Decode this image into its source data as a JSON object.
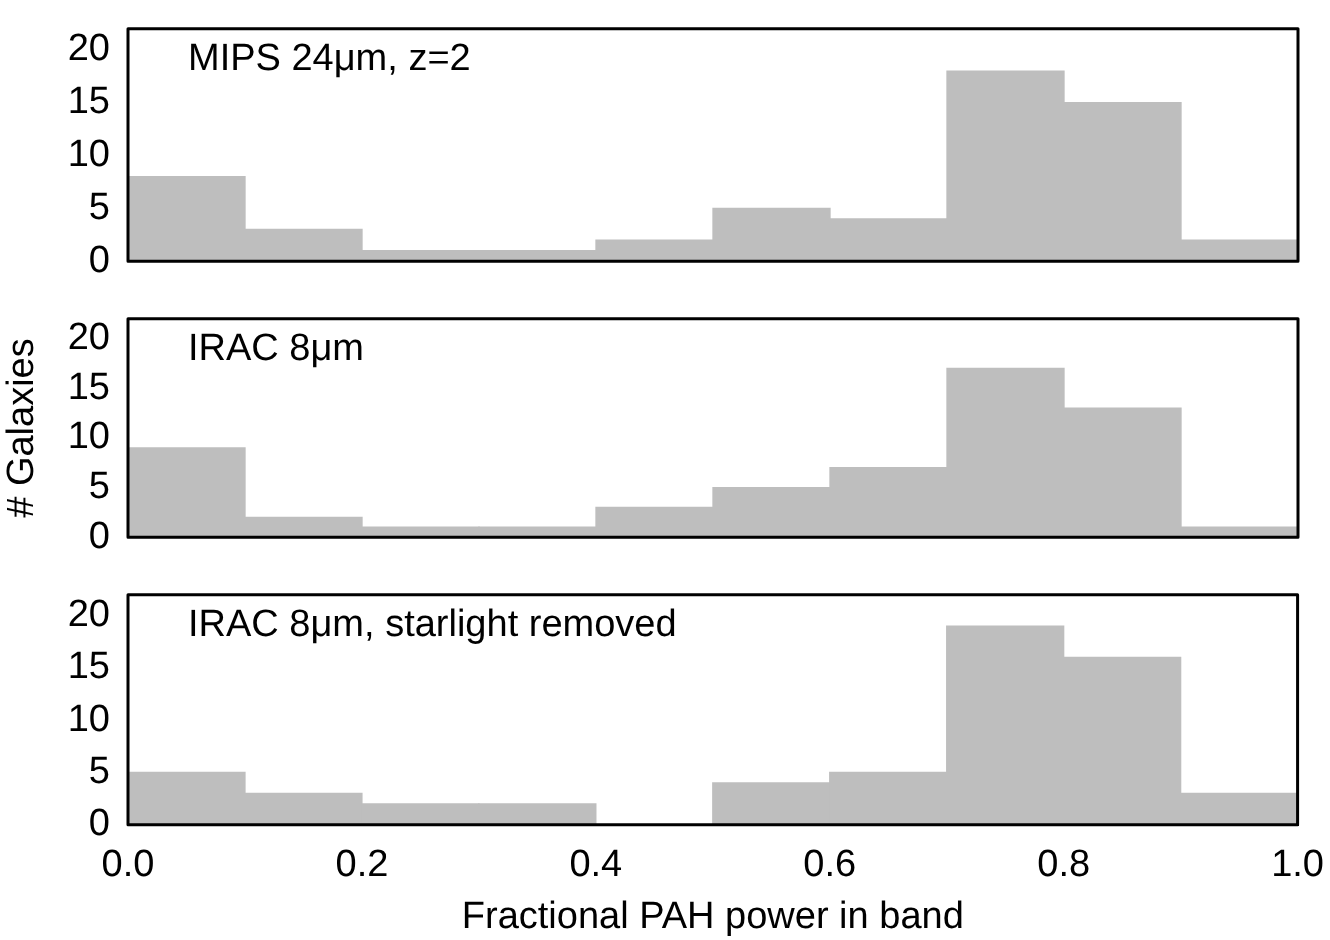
{
  "chart_data": [
    {
      "type": "histogram",
      "title": "MIPS 24μm, z=2",
      "bins": [
        0,
        0.1,
        0.2,
        0.3,
        0.4,
        0.5,
        0.6,
        0.7,
        0.8,
        0.9,
        1.0
      ],
      "values": [
        8,
        3,
        1,
        1,
        2,
        5,
        4,
        18,
        15,
        2
      ],
      "color": "#bebebe",
      "xlim": [
        0,
        1
      ],
      "xticks": [
        0,
        0.2,
        0.4,
        0.6,
        0.8,
        1
      ],
      "ylim": [
        0,
        22
      ],
      "yticks": [
        0,
        5,
        10,
        15,
        20
      ],
      "tick_labels": "y",
      "grid": false
    },
    {
      "type": "histogram",
      "title": "IRAC 8μm",
      "ylabel": "# Galaxies",
      "bins": [
        0,
        0.1,
        0.2,
        0.3,
        0.4,
        0.5,
        0.6,
        0.7,
        0.8,
        0.9,
        1.0
      ],
      "values": [
        9,
        2,
        1,
        1,
        3,
        5,
        7,
        17,
        13,
        1
      ],
      "color": "#bebebe",
      "xlim": [
        0,
        1
      ],
      "xticks": [
        0,
        0.2,
        0.4,
        0.6,
        0.8,
        1
      ],
      "ylim": [
        0,
        22
      ],
      "yticks": [
        0,
        5,
        10,
        15,
        20
      ],
      "tick_labels": "y",
      "grid": false
    },
    {
      "type": "histogram",
      "title": "IRAC 8μm, starlight removed",
      "xlabel": "Fractional PAH power in band",
      "bins": [
        0,
        0.1,
        0.2,
        0.3,
        0.4,
        0.5,
        0.6,
        0.7,
        0.8,
        0.9,
        1.0
      ],
      "values": [
        5,
        3,
        2,
        2,
        0,
        4,
        5,
        19,
        16,
        3
      ],
      "color": "#bebebe",
      "xlim": [
        0,
        1
      ],
      "xticks": [
        {
          "value": 0,
          "label": "0.0"
        },
        {
          "value": 0.2,
          "label": "0.2"
        },
        {
          "value": 0.4,
          "label": "0.4"
        },
        {
          "value": 0.6,
          "label": "0.6"
        },
        {
          "value": 0.8,
          "label": "0.8"
        },
        {
          "value": 1,
          "label": "1.0"
        }
      ],
      "ylim": [
        0,
        22
      ],
      "yticks": [
        0,
        5,
        10,
        15,
        20
      ],
      "grid": false
    }
  ]
}
